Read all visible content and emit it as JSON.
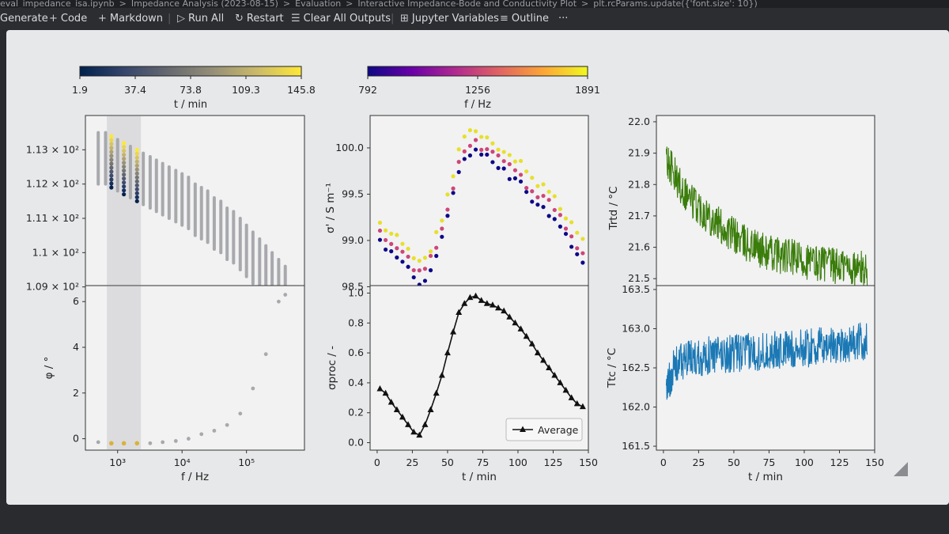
{
  "breadcrumb": [
    "eval_impedance_isa.ipynb",
    ">",
    "Impedance Analysis (2023-08-15)",
    ">",
    "Evaluation",
    ">",
    "Interactive Impedance-Bode and Conductivity Plot",
    ">",
    "plt.rcParams.update({'font.size': 10})"
  ],
  "toolbar": {
    "generate": "Generate",
    "code": "Code",
    "markdown": "Markdown",
    "run_all": "Run All",
    "restart": "Restart",
    "clear_outputs": "Clear All Outputs",
    "variables": "Jupyter Variables",
    "outline": "Outline",
    "more": "···"
  },
  "icons": [
    "plus-icon",
    "play-icon",
    "restart-icon",
    "clear-icon",
    "variables-icon",
    "outline-icon",
    "more-icon",
    "resize-grip-icon"
  ],
  "colors": {
    "panel_bg": "#e7e8ea",
    "toolbar_bg": "#2b2d31",
    "ttrd_green": "#3a7d0a",
    "ttc_blue": "#1a78b5",
    "average_black": "#111111"
  },
  "colorbars": [
    {
      "colormap": "cividis",
      "ticks": [
        "1.9",
        "37.4",
        "73.8",
        "109.3",
        "145.8"
      ],
      "label": "t / min"
    },
    {
      "colormap": "plasma",
      "ticks": [
        "792",
        "1256",
        "1891"
      ],
      "label": "f / Hz"
    }
  ],
  "chart_data": [
    {
      "type": "scatter",
      "id": "impedance-magnitude",
      "xscale": "log",
      "x": [
        500,
        650,
        800,
        1000,
        1250,
        1580,
        2000,
        2500,
        3200,
        4000,
        5000,
        6300,
        8000,
        10000,
        12600,
        16000,
        20000,
        25000,
        31600,
        40000,
        50000,
        63000,
        80000,
        100000,
        126000,
        160000,
        200000,
        250000,
        316000,
        400000
      ],
      "y_top": [
        113.5,
        113.5,
        113.4,
        113.3,
        113.2,
        113.1,
        113.0,
        112.9,
        112.8,
        112.7,
        112.6,
        112.5,
        112.4,
        112.3,
        112.2,
        112.0,
        111.9,
        111.8,
        111.6,
        111.5,
        111.3,
        111.2,
        111.0,
        110.8,
        110.6,
        110.4,
        110.2,
        110.0,
        109.8,
        109.6
      ],
      "y_range": 1.5,
      "highlighted_x": [
        800,
        1250,
        2000
      ],
      "yticks": [
        "1.13 × 10²",
        "1.12 × 10²",
        "1.11 × 10²",
        "1.1 × 10²",
        "1.09 × 10²"
      ],
      "ylim": [
        108.6,
        114.0
      ]
    },
    {
      "type": "scatter",
      "id": "phase",
      "xscale": "log",
      "xlabel": "f / Hz",
      "ylabel": "φ / °",
      "x": [
        500,
        800,
        1250,
        2000,
        3200,
        5000,
        8000,
        12600,
        20000,
        31600,
        50000,
        80000,
        126000,
        200000,
        316000,
        400000
      ],
      "y": [
        -0.15,
        -0.2,
        -0.2,
        -0.2,
        -0.2,
        -0.15,
        -0.1,
        0.0,
        0.2,
        0.35,
        0.6,
        1.1,
        2.2,
        3.7,
        6.0,
        6.3
      ],
      "highlighted_x": [
        800,
        1250,
        2000
      ],
      "xticks": [
        "10³",
        "10⁴",
        "10⁵"
      ],
      "yticks": [
        "0",
        "2",
        "4",
        "6"
      ],
      "ylim": [
        -0.5,
        6.7
      ]
    },
    {
      "type": "scatter",
      "id": "conductivity",
      "ylabel": "σ' / S m⁻¹",
      "series": [
        {
          "name": "792 Hz",
          "color": "#0d0887",
          "offset": -0.1
        },
        {
          "name": "1256 Hz",
          "color": "#cc4778",
          "offset": 0.0
        },
        {
          "name": "1891 Hz",
          "color": "#e6e02a",
          "offset": 0.12
        }
      ],
      "t": [
        2,
        6,
        10,
        14,
        18,
        22,
        26,
        30,
        34,
        38,
        42,
        46,
        50,
        54,
        58,
        62,
        66,
        70,
        74,
        78,
        82,
        86,
        90,
        94,
        98,
        102,
        106,
        110,
        114,
        118,
        122,
        126,
        130,
        134,
        138,
        142,
        146
      ],
      "y": [
        99.1,
        99.0,
        98.95,
        98.9,
        98.85,
        98.8,
        98.7,
        98.65,
        98.7,
        98.8,
        98.95,
        99.1,
        99.35,
        99.6,
        99.85,
        100.0,
        100.05,
        100.05,
        100.0,
        100.0,
        99.95,
        99.9,
        99.85,
        99.8,
        99.75,
        99.7,
        99.6,
        99.55,
        99.5,
        99.45,
        99.4,
        99.35,
        99.25,
        99.15,
        99.05,
        98.95,
        98.9
      ],
      "yticks": [
        "98.5",
        "99.0",
        "99.5",
        "100.0"
      ],
      "ylim": [
        98.35,
        100.35
      ],
      "xlim": [
        -5,
        150
      ]
    },
    {
      "type": "line",
      "id": "normalized-conductivity",
      "xlabel": "t / min",
      "ylabel": "σproc / -",
      "legend": "Average",
      "legend_position": "lower-right",
      "t": [
        2,
        6,
        10,
        14,
        18,
        22,
        26,
        30,
        34,
        38,
        42,
        46,
        50,
        54,
        58,
        62,
        66,
        70,
        74,
        78,
        82,
        86,
        90,
        94,
        98,
        102,
        106,
        110,
        114,
        118,
        122,
        126,
        130,
        134,
        138,
        142,
        146
      ],
      "y": [
        0.36,
        0.33,
        0.27,
        0.22,
        0.17,
        0.12,
        0.07,
        0.05,
        0.12,
        0.22,
        0.33,
        0.45,
        0.6,
        0.74,
        0.87,
        0.93,
        0.97,
        0.98,
        0.95,
        0.93,
        0.92,
        0.9,
        0.88,
        0.84,
        0.8,
        0.76,
        0.71,
        0.66,
        0.6,
        0.55,
        0.5,
        0.45,
        0.4,
        0.35,
        0.3,
        0.26,
        0.24
      ],
      "xticks": [
        "0",
        "25",
        "50",
        "75",
        "100",
        "125",
        "150"
      ],
      "yticks": [
        "0.0",
        "0.2",
        "0.4",
        "0.6",
        "0.8",
        "1.0"
      ],
      "ylim": [
        -0.05,
        1.05
      ],
      "xlim": [
        -5,
        150
      ]
    },
    {
      "type": "line",
      "id": "ttrd",
      "ylabel": "Trtd / °C",
      "t": [
        2,
        6,
        10,
        15,
        20,
        25,
        30,
        35,
        40,
        45,
        50,
        55,
        60,
        65,
        70,
        75,
        80,
        85,
        90,
        95,
        100,
        105,
        110,
        115,
        120,
        125,
        130,
        135,
        140,
        145
      ],
      "y": [
        21.88,
        21.85,
        21.81,
        21.78,
        21.75,
        21.73,
        21.71,
        21.69,
        21.67,
        21.65,
        21.64,
        21.62,
        21.61,
        21.6,
        21.59,
        21.58,
        21.58,
        21.57,
        21.57,
        21.56,
        21.56,
        21.55,
        21.55,
        21.55,
        21.54,
        21.54,
        21.54,
        21.53,
        21.53,
        21.53
      ],
      "noise": 0.06,
      "yticks": [
        "21.5",
        "21.6",
        "21.7",
        "21.8",
        "21.9",
        "22.0"
      ],
      "ylim": [
        21.43,
        22.02
      ],
      "xlim": [
        -5,
        150
      ]
    },
    {
      "type": "line",
      "id": "ttc",
      "xlabel": "t / min",
      "ylabel": "Ttc / °C",
      "t": [
        2,
        6,
        10,
        15,
        20,
        25,
        30,
        35,
        40,
        45,
        50,
        55,
        60,
        65,
        70,
        75,
        80,
        85,
        90,
        95,
        100,
        105,
        110,
        115,
        120,
        125,
        130,
        135,
        140,
        145
      ],
      "y": [
        162.2,
        162.45,
        162.55,
        162.6,
        162.62,
        162.64,
        162.65,
        162.66,
        162.67,
        162.68,
        162.68,
        162.69,
        162.7,
        162.7,
        162.71,
        162.72,
        162.72,
        162.73,
        162.74,
        162.74,
        162.75,
        162.76,
        162.77,
        162.78,
        162.79,
        162.8,
        162.81,
        162.82,
        162.83,
        162.84
      ],
      "noise": 0.25,
      "xticks": [
        "0",
        "25",
        "50",
        "75",
        "100",
        "125",
        "150"
      ],
      "yticks": [
        "161.5",
        "162.0",
        "162.5",
        "163.0",
        "163.5"
      ],
      "ylim": [
        161.45,
        163.55
      ],
      "xlim": [
        -5,
        150
      ]
    }
  ]
}
